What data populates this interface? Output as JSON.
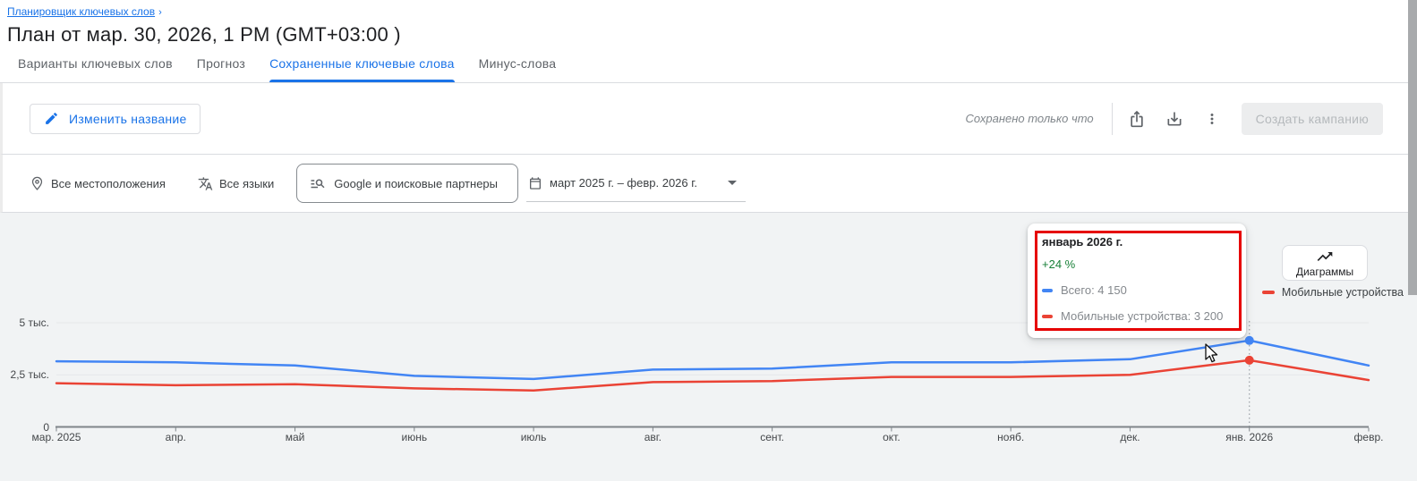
{
  "breadcrumb": {
    "label": "Планировщик ключевых слов",
    "chevron": "›"
  },
  "page_title": "План от мар. 30, 2026, 1 PM (GMT+03:00 )",
  "tabs": [
    {
      "label": "Варианты ключевых слов",
      "active": false
    },
    {
      "label": "Прогноз",
      "active": false
    },
    {
      "label": "Сохраненные ключевые слова",
      "active": true
    },
    {
      "label": "Минус-слова",
      "active": false
    }
  ],
  "toolbar": {
    "rename_button": "Изменить название",
    "saved_status": "Сохранено только что",
    "create_campaign_button": "Создать кампанию"
  },
  "filters": {
    "locations": "Все местоположения",
    "languages": "Все языки",
    "network": "Google и поисковые партнеры",
    "date_range": "март 2025 г. – февр. 2026 г."
  },
  "chart_panel": {
    "diagrams_button": "Диаграммы"
  },
  "legend": [
    {
      "name": "Всего",
      "color": "#4285f4"
    },
    {
      "name": "Мобильные устройства",
      "color": "#ea4335"
    }
  ],
  "tooltip": {
    "title": "январь 2026 г.",
    "change": "+24 %",
    "change_color": "#188038",
    "rows": [
      {
        "label": "Всего: 4 150",
        "color": "#4285f4"
      },
      {
        "label": "Мобильные устройства: 3 200",
        "color": "#ea4335"
      }
    ]
  },
  "chart_data": {
    "type": "line",
    "x": [
      "мар. 2025",
      "апр.",
      "май",
      "июнь",
      "июль",
      "авг.",
      "сент.",
      "окт.",
      "нояб.",
      "дек.",
      "янв. 2026",
      "февр."
    ],
    "series": [
      {
        "name": "Всего",
        "color": "#4285f4",
        "values": [
          3150,
          3100,
          2950,
          2450,
          2300,
          2750,
          2800,
          3100,
          3100,
          3250,
          4150,
          2950
        ]
      },
      {
        "name": "Мобильные устройства",
        "color": "#ea4335",
        "values": [
          2100,
          2000,
          2050,
          1850,
          1750,
          2150,
          2200,
          2400,
          2400,
          2500,
          3200,
          2250
        ]
      }
    ],
    "ylim": [
      0,
      5000
    ],
    "y_ticks": [
      {
        "value": 0,
        "label": "0"
      },
      {
        "value": 2500,
        "label": "2,5 тыс."
      },
      {
        "value": 5000,
        "label": "5 тыс."
      }
    ],
    "grid": true,
    "legend_position": "top-right",
    "highlight": {
      "x_index": 10,
      "point_values": [
        4150,
        3200
      ]
    }
  }
}
